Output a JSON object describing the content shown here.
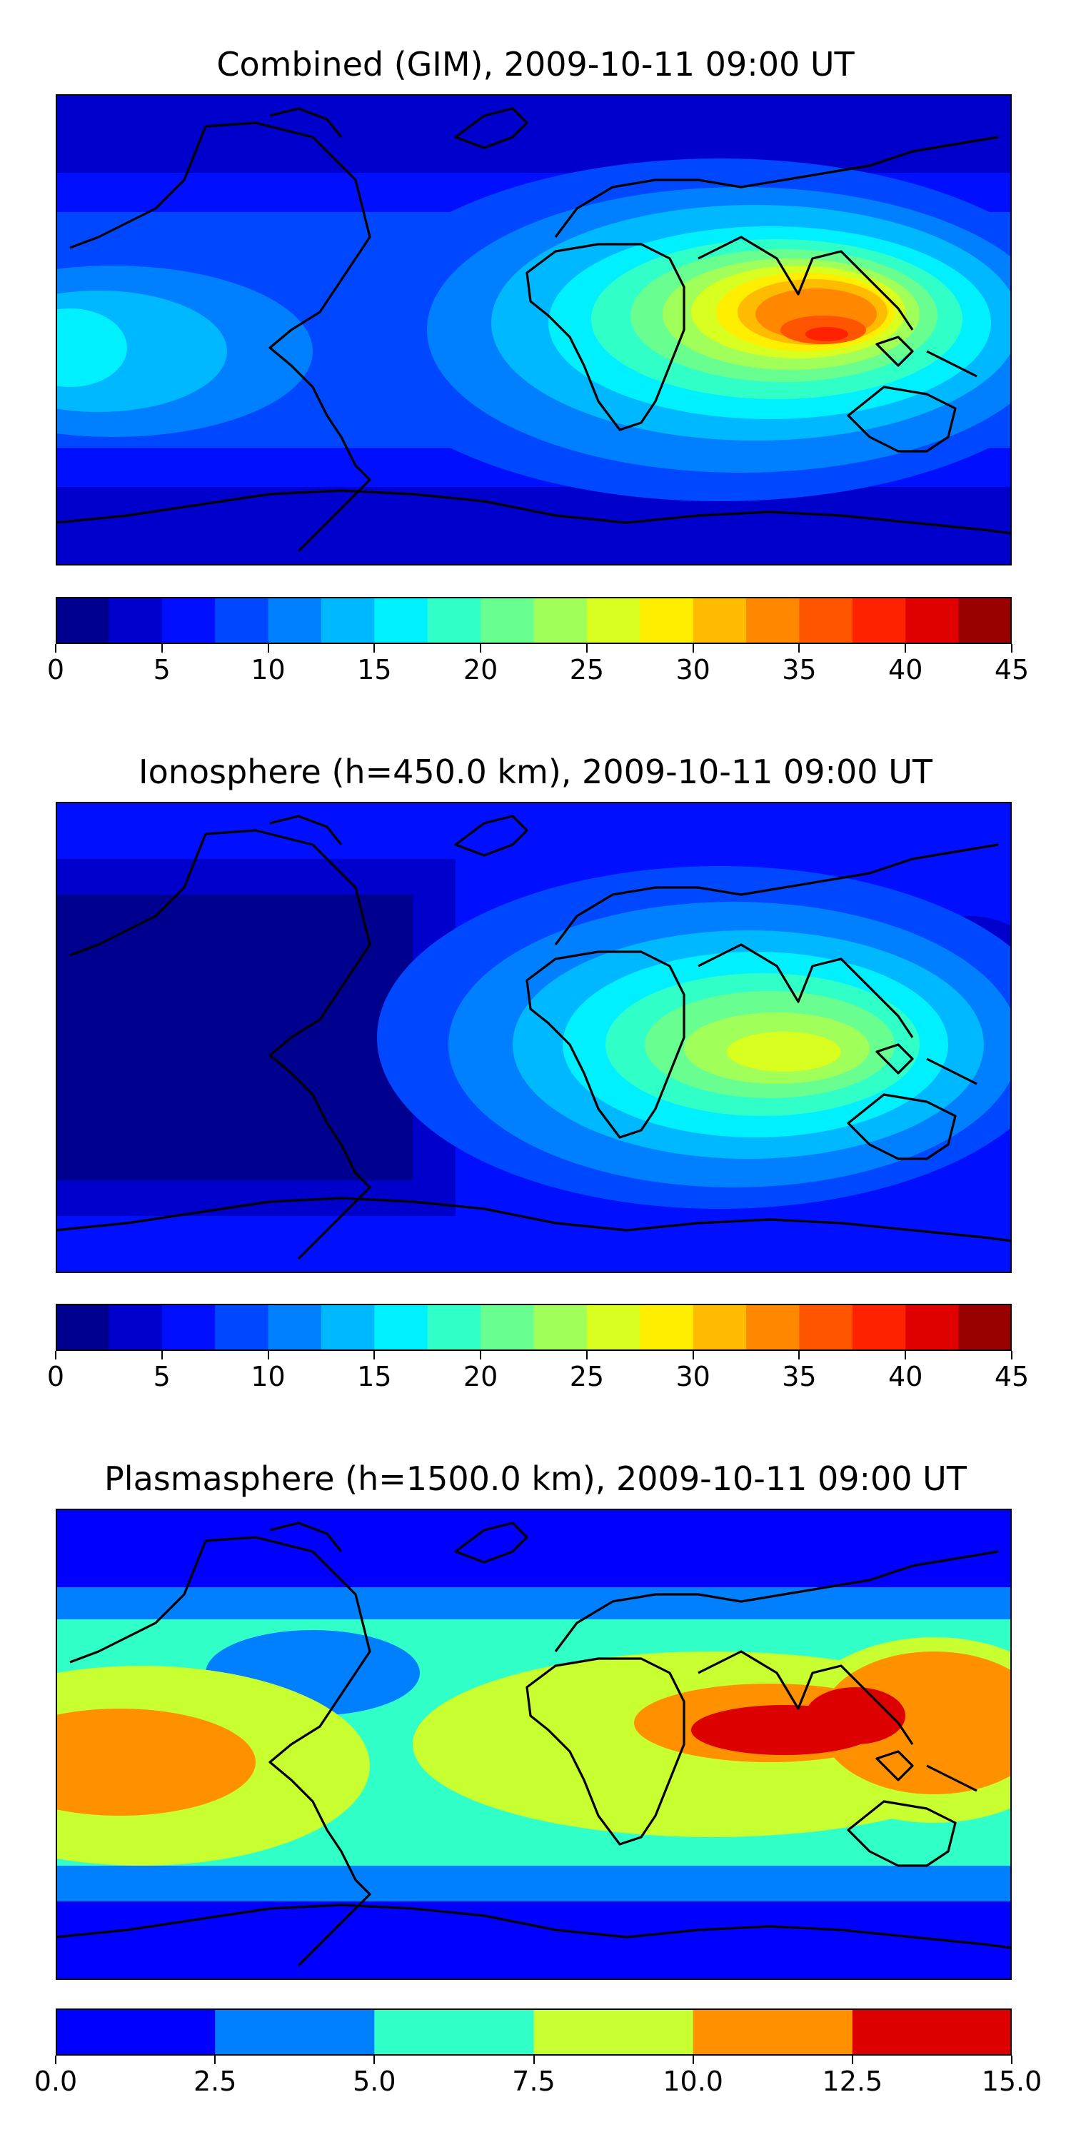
{
  "panels": [
    {
      "title": "Combined (GIM), 2009-10-11 09:00 UT",
      "colorbar": {
        "bounds": [
          0,
          2.5,
          5,
          7.5,
          10,
          12.5,
          15,
          17.5,
          20,
          22.5,
          25,
          27.5,
          30,
          32.5,
          35,
          37.5,
          40,
          42.5,
          45
        ],
        "colors": [
          "#00008f",
          "#0000cc",
          "#0010ff",
          "#0048ff",
          "#0080ff",
          "#00b8ff",
          "#00f0ff",
          "#30ffc8",
          "#68ff90",
          "#a0ff58",
          "#d8ff20",
          "#ffee00",
          "#ffbb00",
          "#ff8800",
          "#ff5500",
          "#ff2200",
          "#e00000",
          "#990000"
        ],
        "tick_labels": [
          "0",
          "5",
          "10",
          "15",
          "20",
          "25",
          "30",
          "35",
          "40",
          "45"
        ],
        "tick_values": [
          0,
          5,
          10,
          15,
          20,
          25,
          30,
          35,
          40,
          45
        ]
      }
    },
    {
      "title": "Ionosphere  (h=450.0 km), 2009-10-11 09:00 UT",
      "colorbar": {
        "bounds": [
          0,
          2.5,
          5,
          7.5,
          10,
          12.5,
          15,
          17.5,
          20,
          22.5,
          25,
          27.5,
          30,
          32.5,
          35,
          37.5,
          40,
          42.5,
          45
        ],
        "colors": [
          "#00008f",
          "#0000cc",
          "#0010ff",
          "#0048ff",
          "#0080ff",
          "#00b8ff",
          "#00f0ff",
          "#30ffc8",
          "#68ff90",
          "#a0ff58",
          "#d8ff20",
          "#ffee00",
          "#ffbb00",
          "#ff8800",
          "#ff5500",
          "#ff2200",
          "#e00000",
          "#990000"
        ],
        "tick_labels": [
          "0",
          "5",
          "10",
          "15",
          "20",
          "25",
          "30",
          "35",
          "40",
          "45"
        ],
        "tick_values": [
          0,
          5,
          10,
          15,
          20,
          25,
          30,
          35,
          40,
          45
        ]
      }
    },
    {
      "title": "Plasmasphere (h=1500.0 km), 2009-10-11 09:00 UT",
      "colorbar": {
        "bounds": [
          0,
          2.5,
          5,
          7.5,
          10,
          12.5,
          15
        ],
        "colors": [
          "#0000ff",
          "#0080ff",
          "#30ffc8",
          "#c8ff30",
          "#ff9000",
          "#dd0000"
        ],
        "tick_labels": [
          "0.0",
          "2.5",
          "5.0",
          "7.5",
          "10.0",
          "12.5",
          "15.0"
        ],
        "tick_values": [
          0,
          2.5,
          5,
          7.5,
          10,
          12.5,
          15
        ]
      }
    }
  ]
}
